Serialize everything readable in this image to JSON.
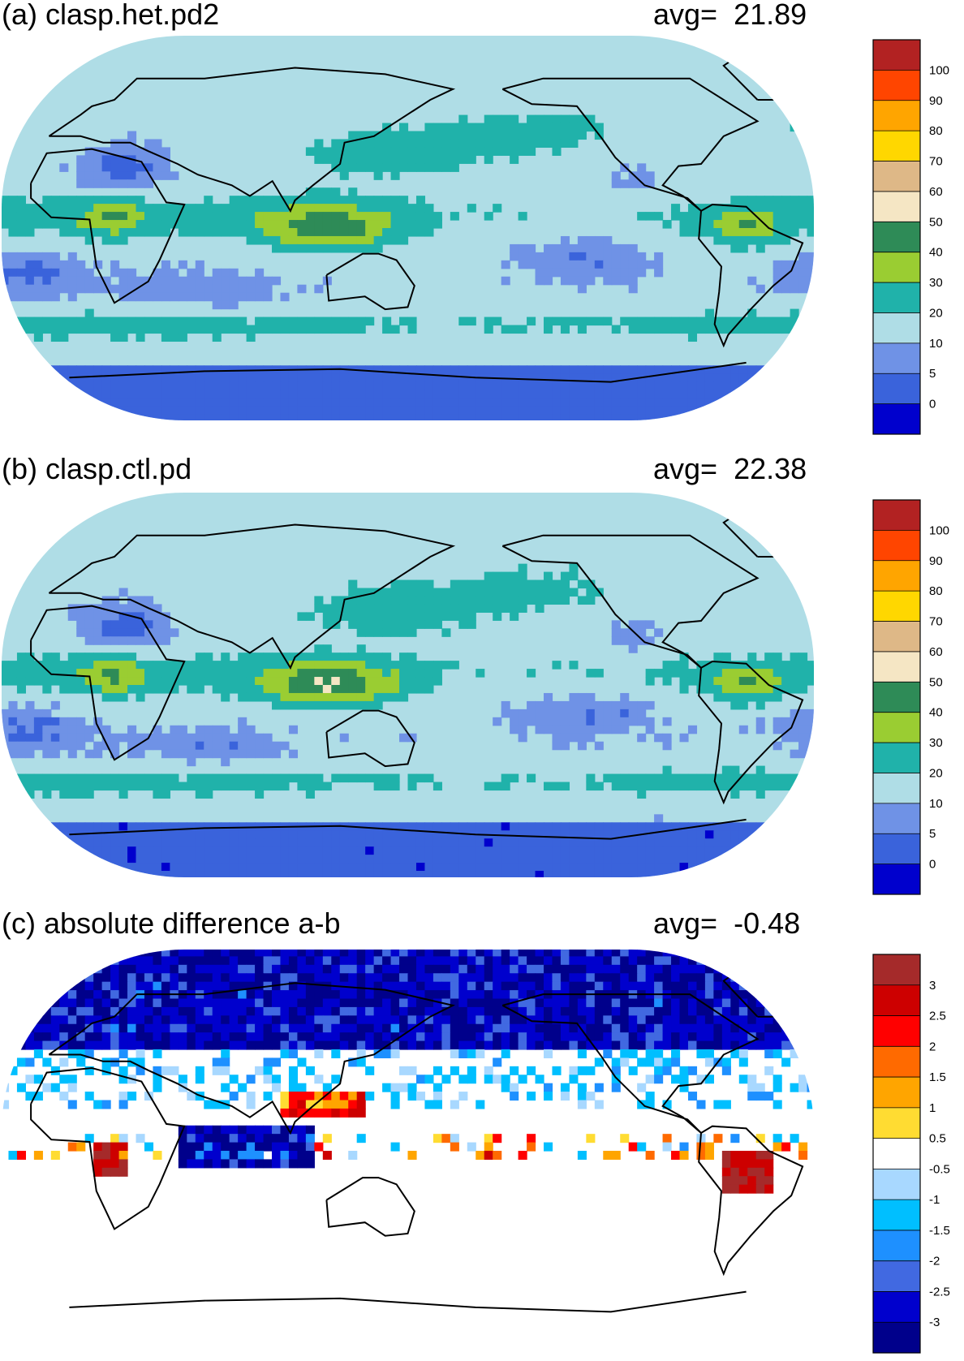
{
  "panels": [
    {
      "title": "(a) clasp.het.pd2",
      "avg_label": "avg=",
      "avg_value": "21.89",
      "colorbar": {
        "labels": [
          "100",
          "90",
          "80",
          "70",
          "60",
          "50",
          "40",
          "30",
          "20",
          "10",
          "5",
          "0"
        ],
        "colors": [
          "#b22222",
          "#ff4500",
          "#ffa500",
          "#ffd700",
          "#deb887",
          "#f5e6c4",
          "#2e8b57",
          "#9acd32",
          "#20b2aa",
          "#afdde6",
          "#6f92e6",
          "#3a63db",
          "#0000cd"
        ]
      }
    },
    {
      "title": "(b) clasp.ctl.pd",
      "avg_label": "avg=",
      "avg_value": "22.38",
      "colorbar": {
        "labels": [
          "100",
          "90",
          "80",
          "70",
          "60",
          "50",
          "40",
          "30",
          "20",
          "10",
          "5",
          "0"
        ],
        "colors": [
          "#b22222",
          "#ff4500",
          "#ffa500",
          "#ffd700",
          "#deb887",
          "#f5e6c4",
          "#2e8b57",
          "#9acd32",
          "#20b2aa",
          "#afdde6",
          "#6f92e6",
          "#3a63db",
          "#0000cd"
        ]
      }
    },
    {
      "title": "(c) absolute difference a-b",
      "avg_label": "avg=",
      "avg_value": "-0.48",
      "colorbar": {
        "labels": [
          "3",
          "2.5",
          "2",
          "1.5",
          "1",
          "0.5",
          "-0.5",
          "-1",
          "-1.5",
          "-2",
          "-2.5",
          "-3"
        ],
        "colors": [
          "#a52a2a",
          "#cd0000",
          "#ff0000",
          "#ff6a00",
          "#ffa500",
          "#ffdc32",
          "#ffffff",
          "#a8d8ff",
          "#00bfff",
          "#1e90ff",
          "#4169e1",
          "#0000cd",
          "#00008b"
        ]
      }
    }
  ]
}
